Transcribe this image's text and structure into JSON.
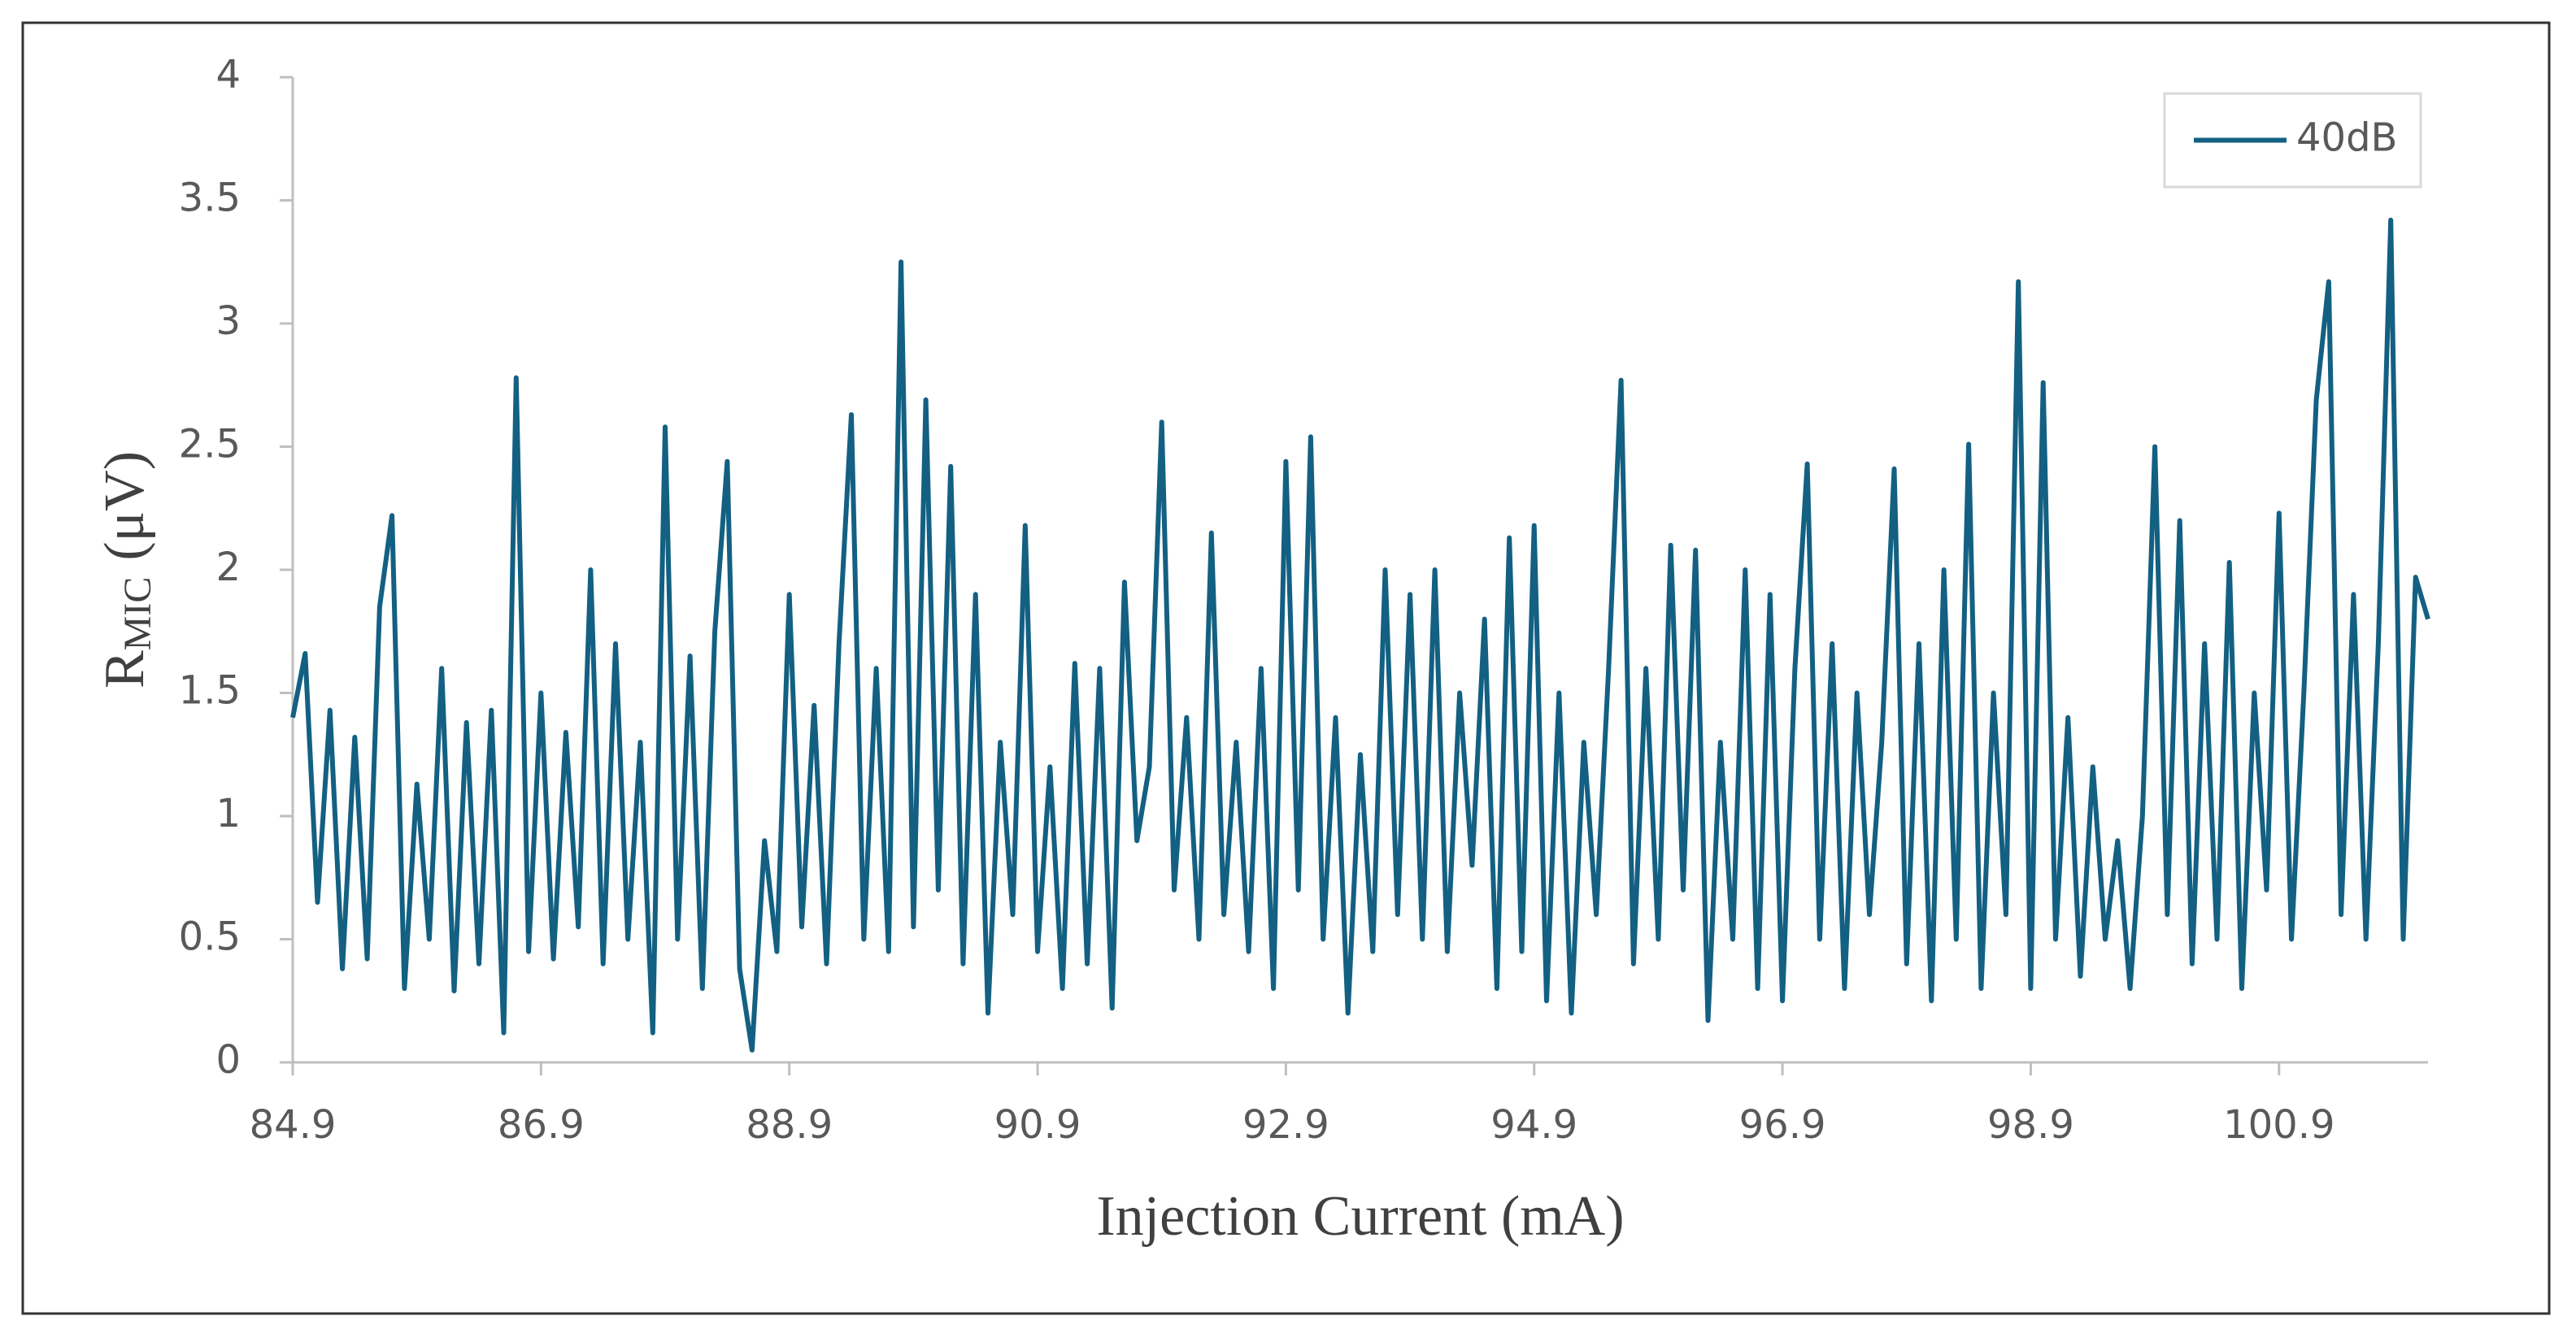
{
  "chart_data": {
    "type": "line",
    "xlabel": "Injection Current (mA)",
    "ylabel": [
      "R",
      "MIC",
      "(μV)"
    ],
    "x": [
      84.9,
      85.0,
      85.1,
      85.2,
      85.3,
      85.4,
      85.5,
      85.6,
      85.7,
      85.8,
      85.9,
      86.0,
      86.1,
      86.2,
      86.3,
      86.4,
      86.5,
      86.6,
      86.7,
      86.8,
      86.9,
      87.0,
      87.1,
      87.2,
      87.3,
      87.4,
      87.5,
      87.6,
      87.7,
      87.8,
      87.9,
      88.0,
      88.1,
      88.2,
      88.3,
      88.4,
      88.5,
      88.6,
      88.7,
      88.8,
      88.9,
      89.0,
      89.1,
      89.2,
      89.3,
      89.4,
      89.5,
      89.6,
      89.7,
      89.8,
      89.9,
      90.0,
      90.1,
      90.2,
      90.3,
      90.4,
      90.5,
      90.6,
      90.7,
      90.8,
      90.9,
      91.0,
      91.1,
      91.2,
      91.3,
      91.4,
      91.5,
      91.6,
      91.7,
      91.8,
      91.9,
      92.0,
      92.1,
      92.2,
      92.3,
      92.4,
      92.5,
      92.6,
      92.7,
      92.8,
      92.9,
      93.0,
      93.1,
      93.2,
      93.3,
      93.4,
      93.5,
      93.6,
      93.7,
      93.8,
      93.9,
      94.0,
      94.1,
      94.2,
      94.3,
      94.4,
      94.5,
      94.6,
      94.7,
      94.8,
      94.9,
      95.0,
      95.1,
      95.2,
      95.3,
      95.4,
      95.5,
      95.6,
      95.7,
      95.8,
      95.9,
      96.0,
      96.1,
      96.2,
      96.3,
      96.4,
      96.5,
      96.6,
      96.7,
      96.8,
      96.9,
      97.0,
      97.1,
      97.2,
      97.3,
      97.4,
      97.5,
      97.6,
      97.7,
      97.8,
      97.9,
      98.0,
      98.1,
      98.2,
      98.3,
      98.4,
      98.5,
      98.6,
      98.7,
      98.8,
      98.9,
      99.0,
      99.1,
      99.2,
      99.3,
      99.4,
      99.5,
      99.6,
      99.7,
      99.8,
      99.9,
      100.0,
      100.1,
      100.2,
      100.3,
      100.4,
      100.5,
      100.6,
      100.7,
      100.8,
      100.9,
      101.0,
      101.1,
      101.2,
      101.3,
      101.4,
      101.5,
      101.6,
      101.7,
      101.8,
      101.9,
      102.0,
      102.1
    ],
    "series": [
      {
        "name": "40dB",
        "color": "#136082",
        "values": [
          1.4,
          1.66,
          0.65,
          1.43,
          0.38,
          1.32,
          0.42,
          1.85,
          2.22,
          0.3,
          1.13,
          0.5,
          1.6,
          0.29,
          1.38,
          0.4,
          1.43,
          0.12,
          2.78,
          0.45,
          1.5,
          0.42,
          1.34,
          0.55,
          2.0,
          0.4,
          1.7,
          0.5,
          1.3,
          0.12,
          2.58,
          0.5,
          1.65,
          0.3,
          1.75,
          2.44,
          0.38,
          0.05,
          0.9,
          0.45,
          1.9,
          0.55,
          1.45,
          0.4,
          1.7,
          2.63,
          0.5,
          1.6,
          0.45,
          3.25,
          0.55,
          2.69,
          0.7,
          2.42,
          0.4,
          1.9,
          0.2,
          1.3,
          0.6,
          2.18,
          0.45,
          1.2,
          0.3,
          1.62,
          0.4,
          1.6,
          0.22,
          1.95,
          0.9,
          1.2,
          2.6,
          0.7,
          1.4,
          0.5,
          2.15,
          0.6,
          1.3,
          0.45,
          1.6,
          0.3,
          2.44,
          0.7,
          2.54,
          0.5,
          1.4,
          0.2,
          1.25,
          0.45,
          2.0,
          0.6,
          1.9,
          0.5,
          2.0,
          0.45,
          1.5,
          0.8,
          1.8,
          0.3,
          2.13,
          0.45,
          2.18,
          0.25,
          1.5,
          0.2,
          1.3,
          0.6,
          1.6,
          2.77,
          0.4,
          1.6,
          0.5,
          2.1,
          0.7,
          2.08,
          0.17,
          1.3,
          0.5,
          2.0,
          0.3,
          1.9,
          0.25,
          1.6,
          2.43,
          0.5,
          1.7,
          0.3,
          1.5,
          0.6,
          1.3,
          2.41,
          0.4,
          1.7,
          0.25,
          2.0,
          0.5,
          2.51,
          0.3,
          1.5,
          0.6,
          3.17,
          0.3,
          2.76,
          0.5,
          1.4,
          0.35,
          1.2,
          0.5,
          0.9,
          0.3,
          1.0,
          2.5,
          0.6,
          2.2,
          0.4,
          1.7,
          0.5,
          2.03,
          0.3,
          1.5,
          0.7,
          2.23,
          0.5,
          1.5,
          2.69,
          3.17,
          0.6,
          1.9,
          0.5,
          1.7,
          3.42,
          0.5,
          1.97,
          1.8
        ]
      }
    ],
    "xlim": [
      84.9,
      102.1
    ],
    "xticks": [
      84.9,
      86.9,
      88.9,
      90.9,
      92.9,
      94.9,
      96.9,
      98.9,
      100.9
    ],
    "ylim": [
      0,
      4
    ],
    "yticks": [
      0,
      0.5,
      1,
      1.5,
      2,
      2.5,
      3,
      3.5,
      4
    ],
    "legend": "top-right"
  }
}
